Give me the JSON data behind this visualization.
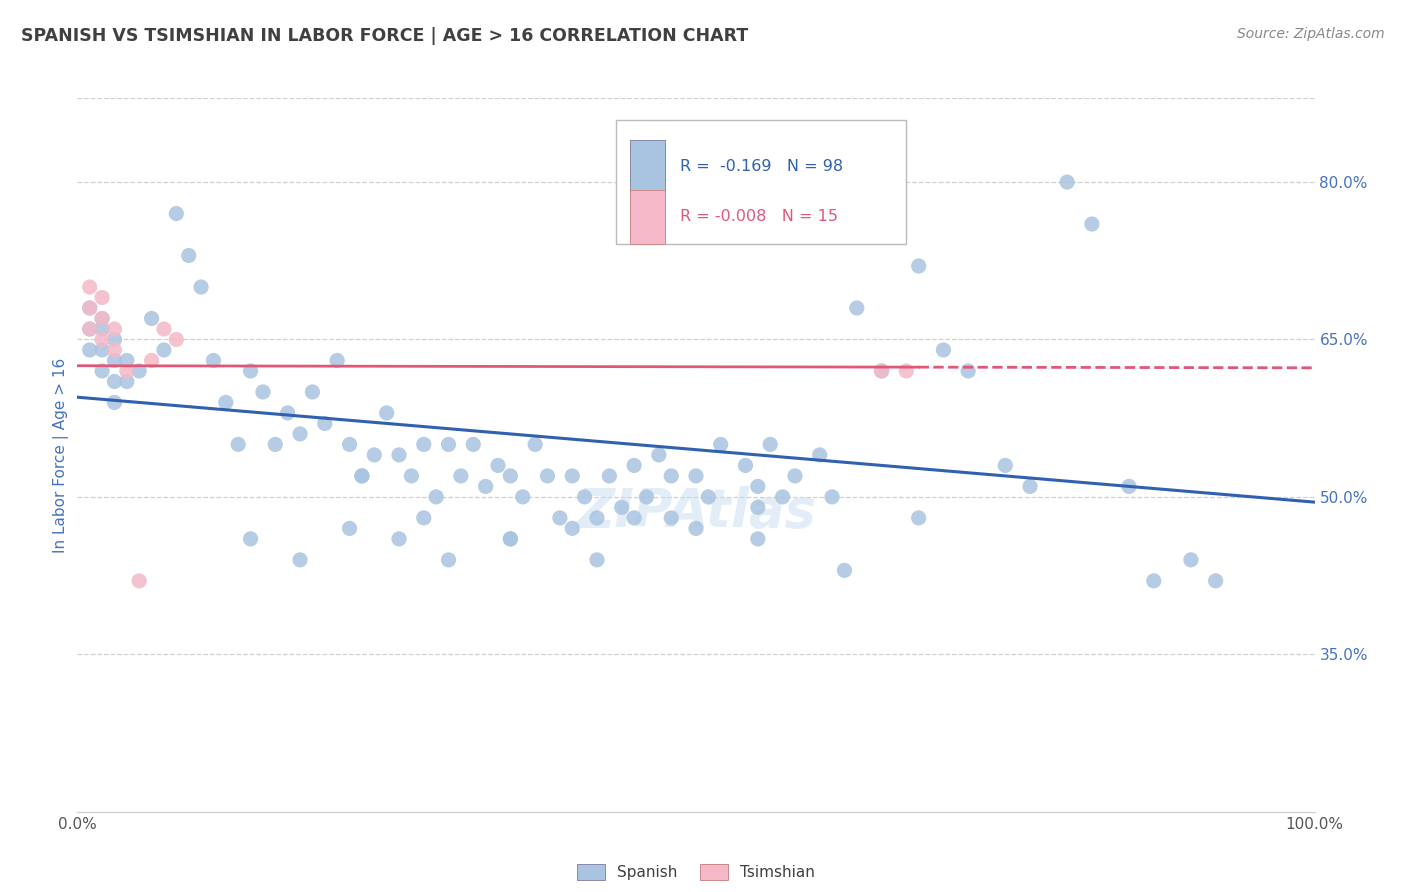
{
  "title": "SPANISH VS TSIMSHIAN IN LABOR FORCE | AGE > 16 CORRELATION CHART",
  "source_text": "Source: ZipAtlas.com",
  "ylabel": "In Labor Force | Age > 16",
  "xlim": [
    0.0,
    1.0
  ],
  "ylim": [
    0.2,
    0.88
  ],
  "y_ticks": [
    0.35,
    0.5,
    0.65,
    0.8
  ],
  "y_tick_labels": [
    "35.0%",
    "50.0%",
    "65.0%",
    "80.0%"
  ],
  "blue_color": "#a8c4e0",
  "pink_color": "#f4b8c8",
  "blue_line_color": "#3060b0",
  "pink_line_color": "#e05878",
  "title_color": "#404040",
  "source_color": "#888888",
  "axis_label_color": "#4472c4",
  "tick_color": "#4472c4",
  "grid_color": "#d0d0d0",
  "background_color": "#ffffff",
  "blue_line_y0": 0.595,
  "blue_line_y1": 0.495,
  "pink_line_y0": 0.625,
  "pink_line_y1": 0.623,
  "spanish_x": [
    0.01,
    0.01,
    0.01,
    0.02,
    0.02,
    0.02,
    0.02,
    0.03,
    0.03,
    0.03,
    0.03,
    0.04,
    0.04,
    0.05,
    0.06,
    0.07,
    0.08,
    0.09,
    0.1,
    0.11,
    0.12,
    0.13,
    0.14,
    0.15,
    0.16,
    0.17,
    0.18,
    0.19,
    0.2,
    0.21,
    0.22,
    0.23,
    0.24,
    0.25,
    0.26,
    0.27,
    0.28,
    0.29,
    0.3,
    0.31,
    0.32,
    0.33,
    0.34,
    0.35,
    0.36,
    0.37,
    0.38,
    0.39,
    0.4,
    0.41,
    0.42,
    0.43,
    0.44,
    0.45,
    0.46,
    0.47,
    0.48,
    0.5,
    0.51,
    0.52,
    0.54,
    0.55,
    0.56,
    0.57,
    0.58,
    0.6,
    0.61,
    0.63,
    0.65,
    0.68,
    0.7,
    0.72,
    0.75,
    0.77,
    0.8,
    0.82,
    0.85,
    0.87,
    0.9,
    0.92,
    0.14,
    0.18,
    0.22,
    0.26,
    0.3,
    0.35,
    0.4,
    0.45,
    0.5,
    0.55,
    0.23,
    0.28,
    0.35,
    0.42,
    0.48,
    0.55,
    0.62,
    0.68
  ],
  "spanish_y": [
    0.68,
    0.66,
    0.64,
    0.67,
    0.66,
    0.64,
    0.62,
    0.65,
    0.63,
    0.61,
    0.59,
    0.63,
    0.61,
    0.62,
    0.67,
    0.64,
    0.77,
    0.73,
    0.7,
    0.63,
    0.59,
    0.55,
    0.62,
    0.6,
    0.55,
    0.58,
    0.56,
    0.6,
    0.57,
    0.63,
    0.55,
    0.52,
    0.54,
    0.58,
    0.54,
    0.52,
    0.55,
    0.5,
    0.55,
    0.52,
    0.55,
    0.51,
    0.53,
    0.52,
    0.5,
    0.55,
    0.52,
    0.48,
    0.52,
    0.5,
    0.48,
    0.52,
    0.49,
    0.53,
    0.5,
    0.54,
    0.52,
    0.52,
    0.5,
    0.55,
    0.53,
    0.51,
    0.55,
    0.5,
    0.52,
    0.54,
    0.5,
    0.68,
    0.62,
    0.72,
    0.64,
    0.62,
    0.53,
    0.51,
    0.8,
    0.76,
    0.51,
    0.42,
    0.44,
    0.42,
    0.46,
    0.44,
    0.47,
    0.46,
    0.44,
    0.46,
    0.47,
    0.48,
    0.47,
    0.49,
    0.52,
    0.48,
    0.46,
    0.44,
    0.48,
    0.46,
    0.43,
    0.48
  ],
  "tsimshian_x": [
    0.01,
    0.01,
    0.01,
    0.02,
    0.02,
    0.02,
    0.03,
    0.03,
    0.04,
    0.05,
    0.06,
    0.07,
    0.08,
    0.65,
    0.67
  ],
  "tsimshian_y": [
    0.7,
    0.68,
    0.66,
    0.69,
    0.67,
    0.65,
    0.66,
    0.64,
    0.62,
    0.42,
    0.63,
    0.66,
    0.65,
    0.62,
    0.62
  ]
}
